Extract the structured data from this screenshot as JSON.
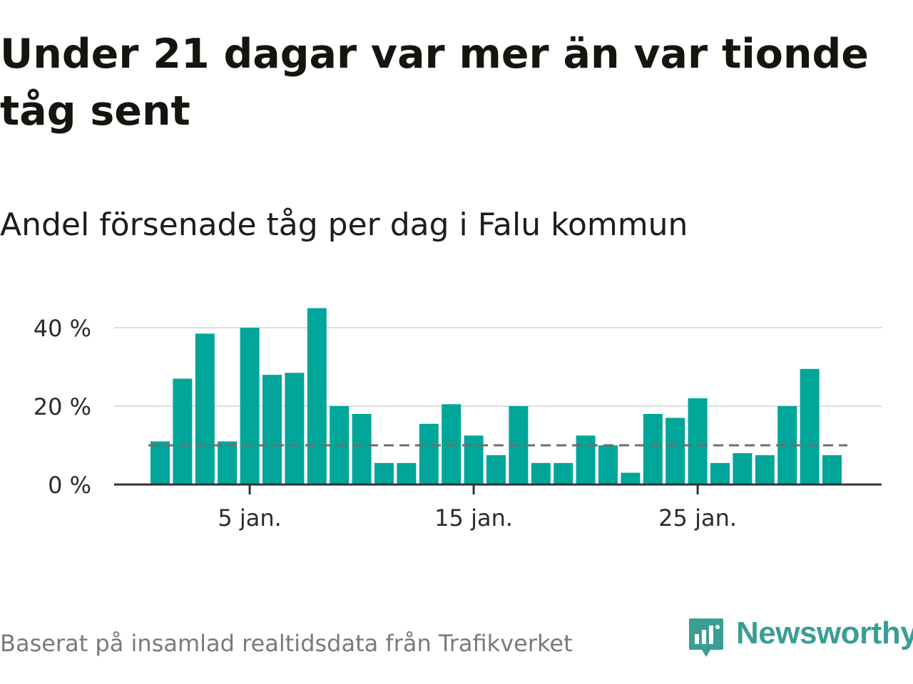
{
  "title": "Under 21 dagar var mer än var tionde tåg sent",
  "subtitle": "Andel försenade tåg per dag i Falu kommun",
  "source": "Baserat på insamlad realtidsdata från Trafikverket",
  "brand": {
    "name": "Newsworthy",
    "icon": "newsworthy-logo-icon",
    "color": "#3a9e95"
  },
  "chart_data": {
    "type": "bar",
    "x": [
      1,
      2,
      3,
      4,
      5,
      6,
      7,
      8,
      9,
      10,
      11,
      12,
      13,
      14,
      15,
      16,
      17,
      18,
      19,
      20,
      21,
      22,
      23,
      24,
      25,
      26,
      27,
      28,
      29,
      30,
      31
    ],
    "values": [
      11,
      27,
      38.5,
      11,
      40,
      28,
      28.5,
      45,
      20,
      18,
      5.5,
      5.5,
      15.5,
      20.5,
      12.5,
      7.5,
      20,
      5.5,
      5.5,
      12.5,
      10,
      3,
      18,
      17,
      22,
      5.5,
      8,
      7.5,
      20,
      29.5,
      7.5
    ],
    "unit": "%",
    "ylim": [
      0,
      45
    ],
    "yticks": [
      0,
      20,
      40
    ],
    "ytick_labels": [
      "0 %",
      "20 %",
      "40 %"
    ],
    "xticks": [
      5,
      15,
      25
    ],
    "xtick_labels": [
      "5 jan.",
      "15 jan.",
      "25 jan."
    ],
    "reference_line": 10,
    "bar_color": "#00a69a",
    "reference_color": "#6e6e6e",
    "grid": true
  }
}
